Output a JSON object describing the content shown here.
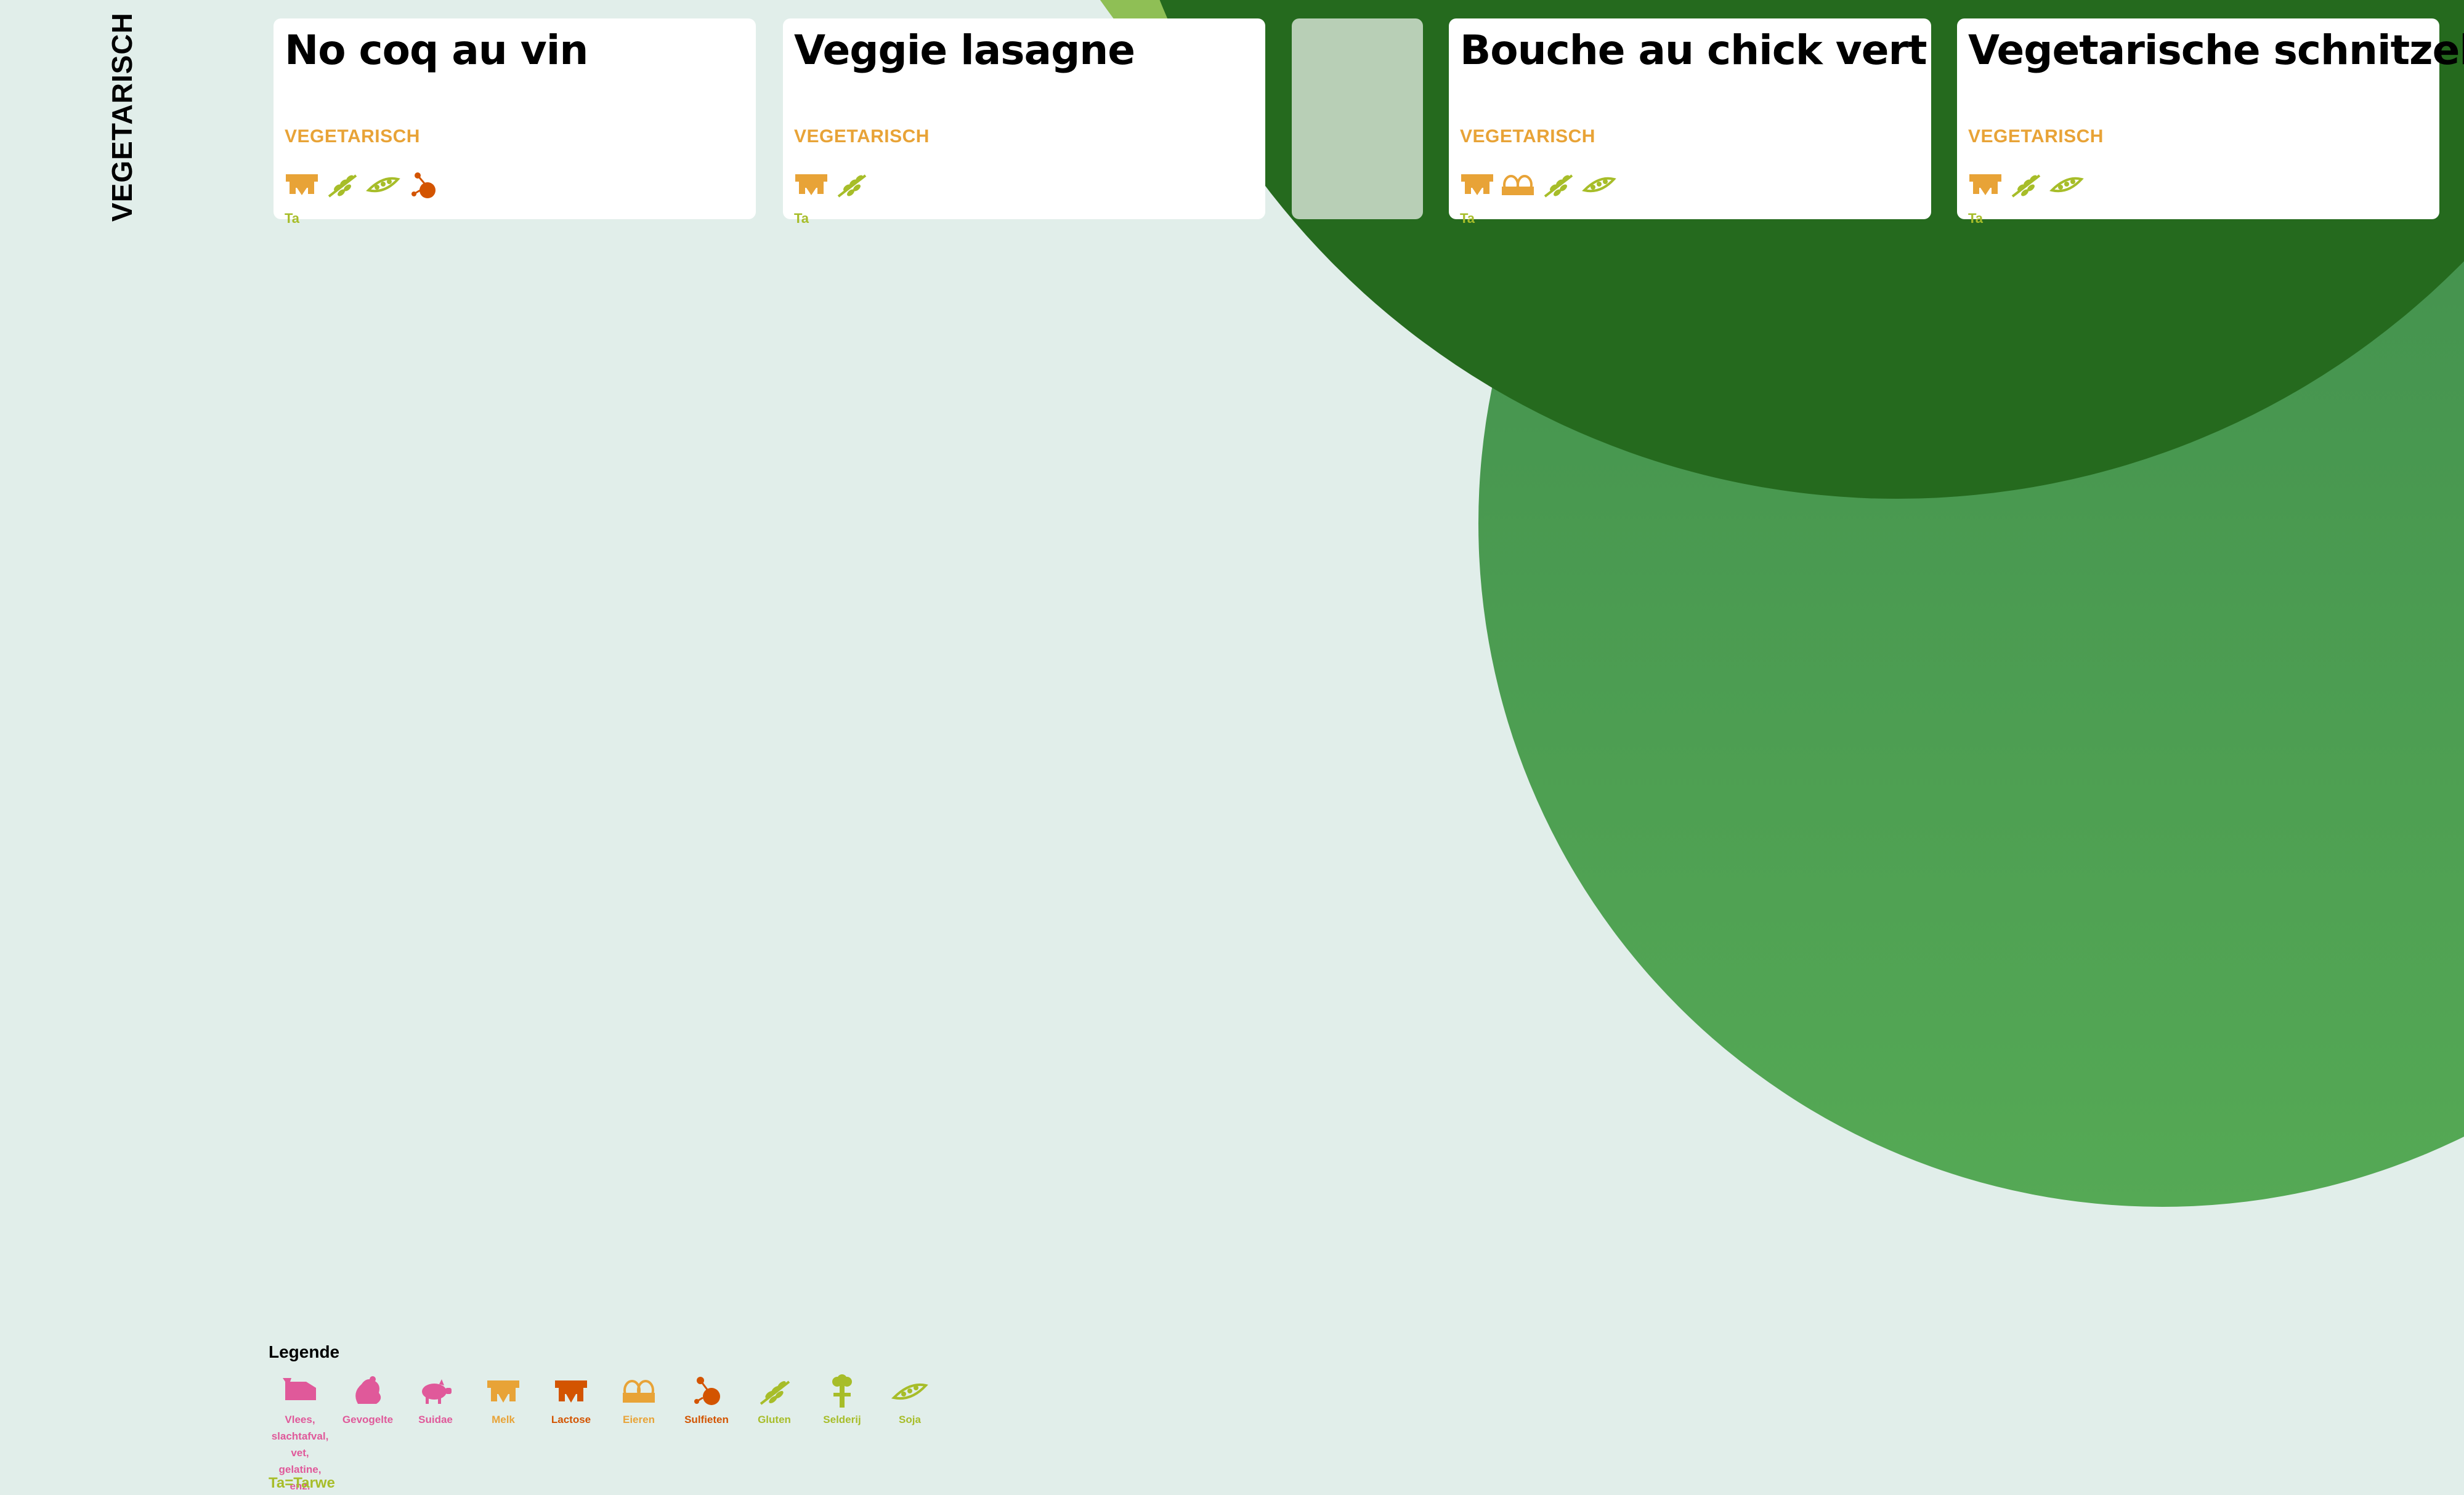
{
  "page": {
    "section_title": "VEGETARISCH"
  },
  "colors": {
    "background": "#e1eeea",
    "blob_light": "#8fbf55",
    "blob_dark": "#256a1e",
    "blob_mid": "#4a9e4e",
    "card": "#ffffff",
    "diet_orange": "#e8a337",
    "lactose": "#d35400",
    "gluten_green": "#a7bd29",
    "pink": "#e0599a"
  },
  "cards": [
    {
      "title": "No coq au vin",
      "diet": "VEGETARISCH",
      "allergens": [
        "milk-icon",
        "gluten-icon",
        "soy-icon",
        "sulfites-icon"
      ],
      "code": "Ta"
    },
    {
      "title": "Veggie lasagne",
      "diet": "VEGETARISCH",
      "allergens": [
        "milk-icon",
        "gluten-icon"
      ],
      "code": "Ta"
    },
    {
      "title": "",
      "diet": "",
      "allergens": [],
      "code": ""
    },
    {
      "title": "Bouche au chick vert",
      "diet": "VEGETARISCH",
      "allergens": [
        "milk-icon",
        "eggs-icon",
        "gluten-icon",
        "soy-icon"
      ],
      "code": "Ta"
    },
    {
      "title": "Vegetarische schnitzel",
      "diet": "VEGETARISCH",
      "allergens": [
        "milk-icon",
        "gluten-icon",
        "soy-icon"
      ],
      "code": "Ta"
    }
  ],
  "legend": {
    "title": "Legende",
    "note": "Ta=Tarwe",
    "items": [
      {
        "icon": "meat-icon",
        "label": "Vlees,\nslachtafval,\nvet,\ngelatine,\nenz.",
        "color": "#e0599a"
      },
      {
        "icon": "poultry-icon",
        "label": "Gevogelte",
        "color": "#e0599a"
      },
      {
        "icon": "pork-icon",
        "label": "Suidae",
        "color": "#e0599a"
      },
      {
        "icon": "milk-icon",
        "label": "Melk",
        "color": "#e8a337"
      },
      {
        "icon": "lactose-icon",
        "label": "Lactose",
        "color": "#d35400"
      },
      {
        "icon": "eggs-icon",
        "label": "Eieren",
        "color": "#e8a337"
      },
      {
        "icon": "sulfites-icon",
        "label": "Sulfieten",
        "color": "#d35400"
      },
      {
        "icon": "gluten-icon",
        "label": "Gluten",
        "color": "#a7bd29"
      },
      {
        "icon": "celery-icon",
        "label": "Selderij",
        "color": "#a7bd29"
      },
      {
        "icon": "soy-icon",
        "label": "Soja",
        "color": "#a7bd29"
      }
    ]
  }
}
